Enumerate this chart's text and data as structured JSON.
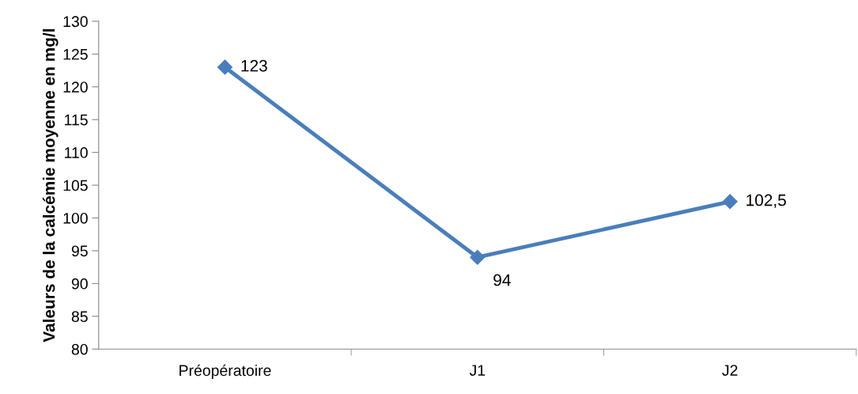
{
  "chart_data": {
    "type": "line",
    "ylabel": "Valeurs de la calcémie moyenne en mg/l",
    "categories": [
      "Préopératoire",
      "J1",
      "J2"
    ],
    "series": [
      {
        "color": "#4a7ebb",
        "values": [
          123,
          94,
          102.5
        ],
        "value_labels": [
          "123",
          "94",
          "102,5"
        ]
      }
    ],
    "ylim": [
      80,
      130
    ],
    "yticks": [
      80,
      85,
      90,
      95,
      100,
      105,
      110,
      115,
      120,
      125,
      130
    ],
    "marker": "diamond",
    "line_style": "solid",
    "grid": false,
    "legend": false
  }
}
